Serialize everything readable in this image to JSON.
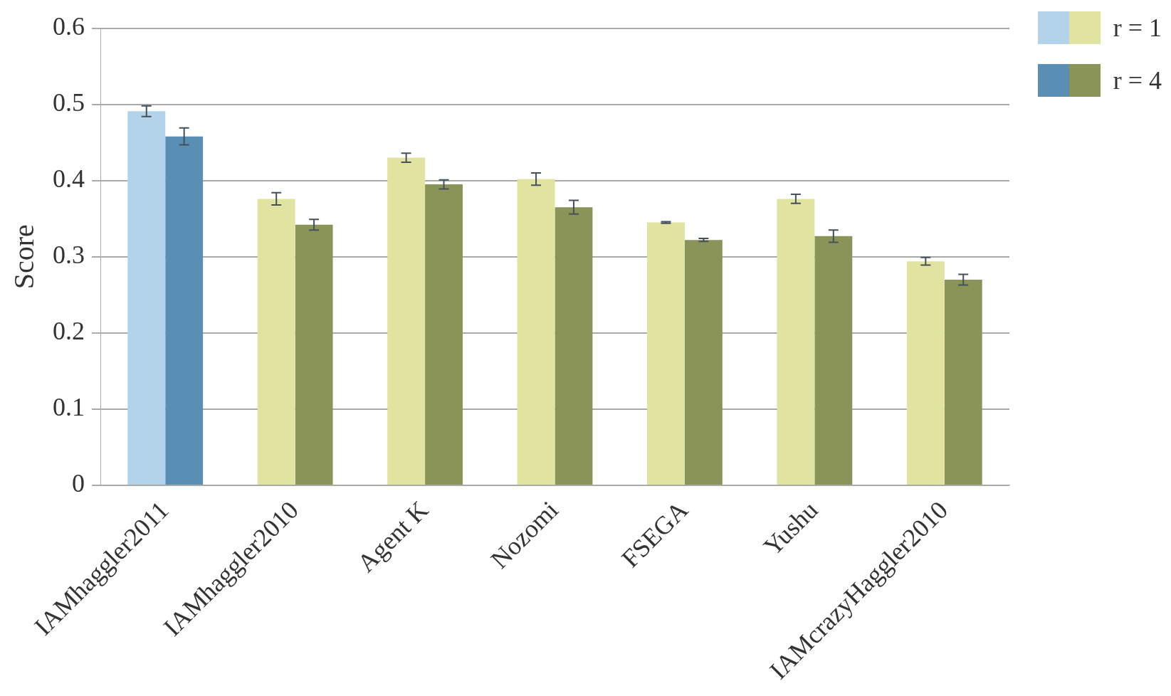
{
  "chart_data": {
    "type": "bar",
    "ylabel": "Score",
    "categories": [
      "IAMhaggler2011",
      "IAMhaggler2010",
      "Agent K",
      "Nozomi",
      "FSEGA",
      "Yushu",
      "IAMcrazyHaggler2010"
    ],
    "series": [
      {
        "name": "r = 1",
        "colors": [
          "#b3d3ea",
          "#e0e4a0",
          "#e0e4a0",
          "#e0e4a0",
          "#e0e4a0",
          "#e0e4a0",
          "#e0e4a0"
        ],
        "values": [
          0.491,
          0.376,
          0.43,
          0.402,
          0.345,
          0.376,
          0.294
        ],
        "errors": [
          0.007,
          0.008,
          0.006,
          0.008,
          0.001,
          0.006,
          0.005
        ]
      },
      {
        "name": "r = 4",
        "colors": [
          "#5a8fb5",
          "#8a9458",
          "#8a9458",
          "#8a9458",
          "#8a9458",
          "#8a9458",
          "#8a9458"
        ],
        "values": [
          0.458,
          0.342,
          0.395,
          0.365,
          0.322,
          0.327,
          0.27
        ],
        "errors": [
          0.011,
          0.007,
          0.006,
          0.009,
          0.002,
          0.008,
          0.007
        ]
      }
    ],
    "ylim": [
      0,
      0.6
    ],
    "yticks": [
      0,
      0.1,
      0.2,
      0.3,
      0.4,
      0.5,
      0.6
    ],
    "grid": "y",
    "legend": "top right"
  }
}
